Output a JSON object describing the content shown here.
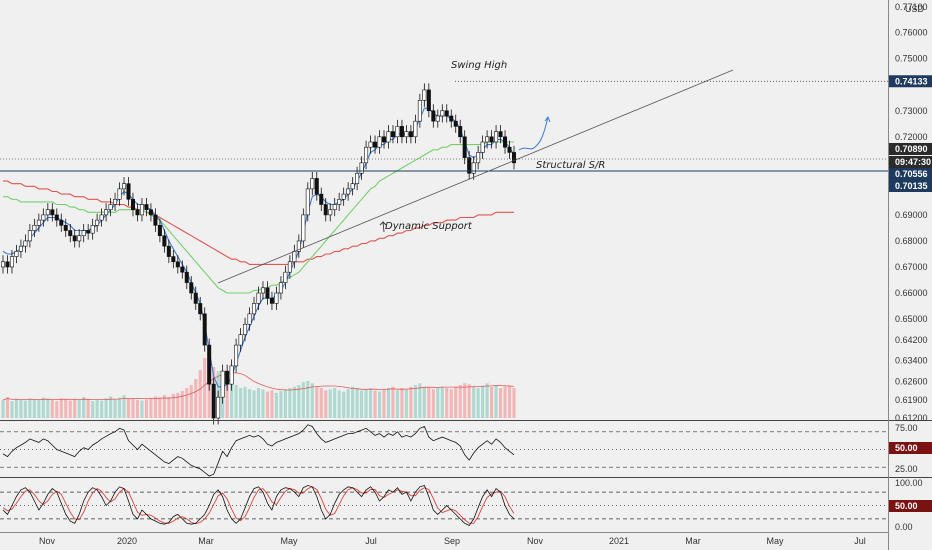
{
  "chart_data": {
    "type": "candlestick",
    "currency_label": "USD",
    "price_axis": {
      "ticks": [
        "0.77100",
        "0.76000",
        "0.75000",
        "0.74133",
        "0.73000",
        "0.72000",
        "0.70890",
        "09:47:30",
        "0.70556",
        "0.70135",
        "0.69000",
        "0.68000",
        "0.67000",
        "0.66000",
        "0.65000",
        "0.64200",
        "0.63400",
        "0.62600",
        "0.61900",
        "0.61200"
      ],
      "ylim": [
        0.612,
        0.771
      ]
    },
    "price_badges": [
      {
        "label": "0.74133",
        "value": 0.74133,
        "color": "#1e3a5f"
      },
      {
        "label": "0.70890",
        "value": 0.7089,
        "color": "#2b2b2b"
      },
      {
        "label": "09:47:30",
        "value": 0.7075,
        "color": "#2b2b2b"
      },
      {
        "label": "0.70556",
        "value": 0.70556,
        "color": "#1e3a5f"
      },
      {
        "label": "0.70135",
        "value": 0.70135,
        "color": "#1e3a5f"
      }
    ],
    "time_axis": {
      "labels": [
        "Nov",
        "2020",
        "Mar",
        "May",
        "Jul",
        "Sep",
        "Nov",
        "2021",
        "Mar",
        "May",
        "Jul"
      ]
    },
    "annotations": [
      {
        "text": "Swing High",
        "price": 0.7445
      },
      {
        "text": "Structural S/R",
        "price": 0.7068
      },
      {
        "text": "Dynamic Support",
        "price": 0.6795
      }
    ],
    "levels": {
      "swing_high": 0.74133,
      "structural_sr": 0.70556,
      "last_close": 0.7089
    },
    "trendline": {
      "from": [
        0.658
      ],
      "to": [
        0.7413
      ]
    },
    "closes": [
      0.672,
      0.67,
      0.674,
      0.676,
      0.678,
      0.68,
      0.684,
      0.686,
      0.688,
      0.69,
      0.692,
      0.69,
      0.688,
      0.686,
      0.684,
      0.682,
      0.68,
      0.682,
      0.684,
      0.683,
      0.686,
      0.688,
      0.69,
      0.692,
      0.694,
      0.696,
      0.7,
      0.702,
      0.696,
      0.692,
      0.69,
      0.694,
      0.692,
      0.69,
      0.686,
      0.682,
      0.678,
      0.674,
      0.672,
      0.67,
      0.668,
      0.664,
      0.66,
      0.656,
      0.652,
      0.64,
      0.625,
      0.612,
      0.62,
      0.63,
      0.625,
      0.632,
      0.64,
      0.644,
      0.648,
      0.652,
      0.656,
      0.66,
      0.662,
      0.658,
      0.656,
      0.66,
      0.664,
      0.668,
      0.672,
      0.676,
      0.68,
      0.69,
      0.7,
      0.704,
      0.698,
      0.694,
      0.69,
      0.692,
      0.694,
      0.696,
      0.698,
      0.7,
      0.702,
      0.706,
      0.71,
      0.716,
      0.718,
      0.716,
      0.72,
      0.718,
      0.722,
      0.72,
      0.724,
      0.72,
      0.722,
      0.72,
      0.726,
      0.734,
      0.738,
      0.73,
      0.726,
      0.728,
      0.73,
      0.728,
      0.726,
      0.724,
      0.72,
      0.712,
      0.706,
      0.71,
      0.714,
      0.718,
      0.72,
      0.718,
      0.722,
      0.72,
      0.716,
      0.714,
      0.71
    ],
    "ma_fast": [
      0.676,
      0.675,
      0.675,
      0.676,
      0.677,
      0.679,
      0.681,
      0.683,
      0.685,
      0.687,
      0.689,
      0.689,
      0.689,
      0.688,
      0.687,
      0.686,
      0.684,
      0.684,
      0.684,
      0.684,
      0.685,
      0.686,
      0.688,
      0.69,
      0.692,
      0.694,
      0.697,
      0.699,
      0.698,
      0.696,
      0.694,
      0.694,
      0.693,
      0.692,
      0.69,
      0.688,
      0.684,
      0.68,
      0.677,
      0.674,
      0.671,
      0.668,
      0.664,
      0.66,
      0.656,
      0.648,
      0.638,
      0.628,
      0.624,
      0.624,
      0.625,
      0.628,
      0.633,
      0.638,
      0.643,
      0.647,
      0.651,
      0.655,
      0.658,
      0.658,
      0.658,
      0.659,
      0.661,
      0.664,
      0.668,
      0.672,
      0.676,
      0.683,
      0.691,
      0.697,
      0.698,
      0.697,
      0.695,
      0.694,
      0.694,
      0.695,
      0.696,
      0.698,
      0.7,
      0.703,
      0.706,
      0.71,
      0.714,
      0.715,
      0.717,
      0.717,
      0.719,
      0.719,
      0.721,
      0.721,
      0.721,
      0.721,
      0.723,
      0.727,
      0.731,
      0.731,
      0.729,
      0.728,
      0.728,
      0.728,
      0.727,
      0.726,
      0.723,
      0.718,
      0.713,
      0.712,
      0.713,
      0.715,
      0.717,
      0.717,
      0.719,
      0.719,
      0.718,
      0.716,
      0.713
    ],
    "ma_mid": [
      0.697,
      0.697,
      0.696,
      0.696,
      0.695,
      0.695,
      0.695,
      0.695,
      0.695,
      0.695,
      0.695,
      0.695,
      0.694,
      0.694,
      0.694,
      0.693,
      0.693,
      0.692,
      0.692,
      0.691,
      0.691,
      0.691,
      0.691,
      0.691,
      0.691,
      0.691,
      0.692,
      0.692,
      0.692,
      0.692,
      0.692,
      0.692,
      0.691,
      0.69,
      0.689,
      0.688,
      0.686,
      0.684,
      0.682,
      0.68,
      0.678,
      0.676,
      0.674,
      0.672,
      0.67,
      0.668,
      0.666,
      0.664,
      0.662,
      0.661,
      0.66,
      0.66,
      0.66,
      0.66,
      0.66,
      0.66,
      0.661,
      0.661,
      0.662,
      0.662,
      0.663,
      0.663,
      0.664,
      0.665,
      0.666,
      0.667,
      0.668,
      0.67,
      0.672,
      0.674,
      0.676,
      0.678,
      0.68,
      0.682,
      0.684,
      0.686,
      0.688,
      0.69,
      0.692,
      0.694,
      0.696,
      0.698,
      0.7,
      0.701,
      0.703,
      0.704,
      0.705,
      0.706,
      0.707,
      0.708,
      0.709,
      0.71,
      0.711,
      0.712,
      0.713,
      0.714,
      0.715,
      0.715,
      0.716,
      0.716,
      0.717,
      0.717,
      0.717,
      0.717,
      0.717,
      0.717,
      0.717,
      0.717,
      0.718,
      0.718,
      0.718,
      0.718,
      0.718,
      0.718,
      0.718
    ],
    "ma_slow": [
      0.703,
      0.703,
      0.702,
      0.702,
      0.702,
      0.701,
      0.701,
      0.701,
      0.7,
      0.7,
      0.7,
      0.699,
      0.699,
      0.698,
      0.698,
      0.698,
      0.697,
      0.697,
      0.697,
      0.696,
      0.696,
      0.696,
      0.695,
      0.695,
      0.695,
      0.694,
      0.694,
      0.694,
      0.693,
      0.693,
      0.692,
      0.692,
      0.691,
      0.691,
      0.69,
      0.689,
      0.688,
      0.687,
      0.686,
      0.685,
      0.684,
      0.683,
      0.682,
      0.681,
      0.68,
      0.679,
      0.678,
      0.677,
      0.676,
      0.675,
      0.674,
      0.673,
      0.673,
      0.672,
      0.672,
      0.671,
      0.671,
      0.671,
      0.671,
      0.671,
      0.671,
      0.671,
      0.671,
      0.671,
      0.671,
      0.672,
      0.672,
      0.672,
      0.673,
      0.673,
      0.674,
      0.674,
      0.675,
      0.675,
      0.676,
      0.676,
      0.677,
      0.677,
      0.678,
      0.678,
      0.679,
      0.679,
      0.68,
      0.68,
      0.681,
      0.681,
      0.682,
      0.682,
      0.683,
      0.683,
      0.684,
      0.684,
      0.685,
      0.685,
      0.686,
      0.686,
      0.687,
      0.687,
      0.687,
      0.688,
      0.688,
      0.688,
      0.689,
      0.689,
      0.689,
      0.689,
      0.69,
      0.69,
      0.69,
      0.69,
      0.691,
      0.691,
      0.691,
      0.691,
      0.691
    ],
    "volume": [
      0.3,
      0.35,
      0.28,
      0.32,
      0.3,
      0.29,
      0.33,
      0.31,
      0.3,
      0.34,
      0.32,
      0.3,
      0.28,
      0.33,
      0.31,
      0.29,
      0.32,
      0.3,
      0.35,
      0.31,
      0.28,
      0.3,
      0.29,
      0.33,
      0.36,
      0.31,
      0.34,
      0.38,
      0.32,
      0.33,
      0.3,
      0.29,
      0.31,
      0.33,
      0.36,
      0.34,
      0.38,
      0.35,
      0.4,
      0.42,
      0.45,
      0.5,
      0.55,
      0.65,
      0.8,
      1.0,
      0.95,
      0.85,
      0.78,
      0.7,
      0.66,
      0.6,
      0.55,
      0.5,
      0.52,
      0.48,
      0.46,
      0.5,
      0.48,
      0.44,
      0.46,
      0.42,
      0.45,
      0.48,
      0.5,
      0.52,
      0.55,
      0.6,
      0.62,
      0.58,
      0.52,
      0.5,
      0.46,
      0.48,
      0.5,
      0.46,
      0.44,
      0.48,
      0.52,
      0.5,
      0.46,
      0.48,
      0.5,
      0.46,
      0.44,
      0.48,
      0.5,
      0.52,
      0.46,
      0.5,
      0.48,
      0.52,
      0.55,
      0.58,
      0.52,
      0.5,
      0.48,
      0.5,
      0.52,
      0.5,
      0.48,
      0.52,
      0.55,
      0.58,
      0.56,
      0.52,
      0.5,
      0.54,
      0.58,
      0.52,
      0.55,
      0.5,
      0.52,
      0.54,
      0.5
    ],
    "rsi": {
      "ticks": [
        "75.00",
        "50.00",
        "25.00"
      ],
      "levels": [
        70,
        50,
        30
      ],
      "badge": "50.00",
      "ylim": [
        20,
        80
      ],
      "values": [
        45,
        42,
        48,
        52,
        55,
        58,
        62,
        60,
        58,
        62,
        60,
        55,
        50,
        48,
        46,
        44,
        42,
        48,
        52,
        50,
        55,
        58,
        62,
        65,
        68,
        70,
        74,
        72,
        60,
        55,
        50,
        56,
        52,
        48,
        44,
        40,
        36,
        34,
        38,
        42,
        40,
        36,
        32,
        30,
        28,
        24,
        20,
        22,
        35,
        48,
        42,
        52,
        60,
        62,
        64,
        66,
        64,
        66,
        62,
        56,
        54,
        58,
        60,
        62,
        64,
        66,
        68,
        72,
        78,
        76,
        68,
        62,
        58,
        60,
        62,
        64,
        66,
        68,
        68,
        70,
        72,
        74,
        70,
        66,
        68,
        64,
        68,
        66,
        70,
        64,
        66,
        64,
        68,
        74,
        76,
        64,
        60,
        62,
        64,
        62,
        60,
        58,
        54,
        44,
        38,
        46,
        52,
        56,
        60,
        56,
        62,
        58,
        52,
        48,
        44
      ]
    },
    "stoch": {
      "ticks": [
        "100.00",
        "50.00",
        "0.00"
      ],
      "levels": [
        80,
        50,
        20
      ],
      "badge": "50.00",
      "ylim": [
        -5,
        105
      ],
      "k": [
        40,
        30,
        50,
        70,
        85,
        90,
        80,
        60,
        40,
        55,
        75,
        88,
        80,
        55,
        30,
        15,
        10,
        30,
        60,
        80,
        90,
        85,
        70,
        50,
        60,
        80,
        92,
        88,
        60,
        30,
        20,
        40,
        30,
        20,
        15,
        10,
        8,
        12,
        25,
        30,
        20,
        10,
        8,
        10,
        20,
        30,
        50,
        75,
        85,
        70,
        40,
        20,
        10,
        20,
        45,
        70,
        88,
        92,
        80,
        55,
        40,
        70,
        85,
        90,
        88,
        80,
        70,
        90,
        95,
        92,
        70,
        40,
        20,
        30,
        55,
        75,
        85,
        92,
        90,
        80,
        70,
        85,
        92,
        80,
        60,
        70,
        85,
        80,
        90,
        75,
        80,
        60,
        80,
        92,
        95,
        70,
        40,
        30,
        40,
        50,
        40,
        30,
        20,
        10,
        5,
        20,
        45,
        70,
        85,
        70,
        88,
        80,
        50,
        30,
        20
      ],
      "d": [
        45,
        38,
        42,
        55,
        70,
        82,
        85,
        75,
        60,
        52,
        60,
        75,
        82,
        75,
        55,
        35,
        20,
        18,
        35,
        60,
        78,
        88,
        82,
        68,
        58,
        65,
        80,
        88,
        80,
        58,
        35,
        28,
        30,
        28,
        22,
        15,
        11,
        10,
        15,
        22,
        25,
        20,
        12,
        9,
        12,
        20,
        33,
        52,
        72,
        78,
        65,
        42,
        22,
        16,
        25,
        45,
        68,
        85,
        88,
        75,
        58,
        52,
        68,
        82,
        88,
        86,
        78,
        78,
        88,
        92,
        86,
        66,
        42,
        28,
        32,
        52,
        72,
        85,
        90,
        86,
        78,
        78,
        86,
        86,
        72,
        68,
        75,
        80,
        85,
        82,
        80,
        72,
        72,
        84,
        90,
        86,
        66,
        44,
        34,
        38,
        42,
        38,
        28,
        18,
        10,
        10,
        25,
        48,
        68,
        76,
        80,
        82,
        70,
        48,
        32
      ]
    }
  }
}
